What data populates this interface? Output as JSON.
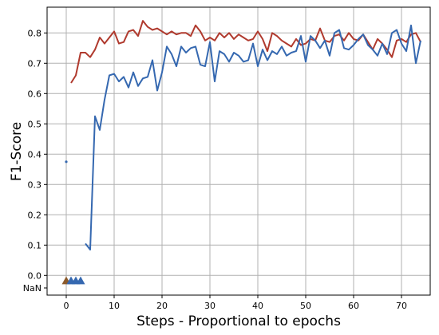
{
  "chart_data": {
    "type": "line",
    "title": "",
    "xlabel": "Steps - Proportional to epochs",
    "ylabel": "F1-Score",
    "xlim": [
      -4,
      76
    ],
    "ylim": [
      -0.065,
      0.885
    ],
    "xticks": [
      0,
      10,
      20,
      30,
      40,
      50,
      60,
      70
    ],
    "yticks": [
      0.0,
      0.1,
      0.2,
      0.3,
      0.4,
      0.5,
      0.6,
      0.7,
      0.8
    ],
    "extra_ytick_label": "NaN",
    "grid": true,
    "series": [
      {
        "color": "#b03a2e",
        "x": [
          1,
          2,
          3,
          4,
          5,
          6,
          7,
          8,
          9,
          10,
          11,
          12,
          13,
          14,
          15,
          16,
          17,
          18,
          19,
          20,
          21,
          22,
          23,
          24,
          25,
          26,
          27,
          28,
          29,
          30,
          31,
          32,
          33,
          34,
          35,
          36,
          37,
          38,
          39,
          40,
          41,
          42,
          43,
          44,
          45,
          46,
          47,
          48,
          49,
          50,
          51,
          52,
          53,
          54,
          55,
          56,
          57,
          58,
          59,
          60,
          61,
          62,
          63,
          64,
          65,
          66,
          67,
          68,
          69,
          70,
          71,
          72,
          73,
          74
        ],
        "values": [
          0.635,
          0.66,
          0.735,
          0.735,
          0.72,
          0.745,
          0.785,
          0.765,
          0.785,
          0.805,
          0.765,
          0.77,
          0.805,
          0.81,
          0.79,
          0.84,
          0.82,
          0.81,
          0.815,
          0.805,
          0.795,
          0.805,
          0.795,
          0.8,
          0.8,
          0.79,
          0.825,
          0.805,
          0.775,
          0.785,
          0.775,
          0.8,
          0.785,
          0.8,
          0.78,
          0.795,
          0.785,
          0.775,
          0.78,
          0.805,
          0.78,
          0.74,
          0.8,
          0.79,
          0.775,
          0.765,
          0.755,
          0.78,
          0.76,
          0.765,
          0.78,
          0.775,
          0.815,
          0.775,
          0.77,
          0.79,
          0.795,
          0.775,
          0.8,
          0.78,
          0.775,
          0.795,
          0.77,
          0.745,
          0.78,
          0.765,
          0.745,
          0.72,
          0.775,
          0.78,
          0.77,
          0.795,
          0.8,
          0.77
        ]
      },
      {
        "color": "#3568b0",
        "x": [
          4,
          5,
          6,
          7,
          8,
          9,
          10,
          11,
          12,
          13,
          14,
          15,
          16,
          17,
          18,
          19,
          20,
          21,
          22,
          23,
          24,
          25,
          26,
          27,
          28,
          29,
          30,
          31,
          32,
          33,
          34,
          35,
          36,
          37,
          38,
          39,
          40,
          41,
          42,
          43,
          44,
          45,
          46,
          47,
          48,
          49,
          50,
          51,
          52,
          53,
          54,
          55,
          56,
          57,
          58,
          59,
          60,
          61,
          62,
          63,
          64,
          65,
          66,
          67,
          68,
          69,
          70,
          71,
          72,
          73,
          74
        ],
        "values": [
          0.105,
          0.085,
          0.525,
          0.48,
          0.58,
          0.66,
          0.665,
          0.64,
          0.655,
          0.62,
          0.67,
          0.625,
          0.65,
          0.655,
          0.71,
          0.61,
          0.67,
          0.755,
          0.73,
          0.69,
          0.755,
          0.735,
          0.75,
          0.755,
          0.695,
          0.69,
          0.77,
          0.64,
          0.74,
          0.73,
          0.705,
          0.735,
          0.725,
          0.705,
          0.71,
          0.765,
          0.69,
          0.745,
          0.71,
          0.74,
          0.73,
          0.755,
          0.725,
          0.735,
          0.74,
          0.79,
          0.705,
          0.79,
          0.775,
          0.75,
          0.775,
          0.725,
          0.8,
          0.81,
          0.75,
          0.745,
          0.76,
          0.78,
          0.795,
          0.76,
          0.745,
          0.725,
          0.765,
          0.73,
          0.8,
          0.81,
          0.765,
          0.74,
          0.825,
          0.7,
          0.775
        ]
      }
    ],
    "markers": [
      {
        "shape": "dot",
        "color": "#3568b0",
        "x": 0,
        "y": 0.375
      },
      {
        "shape": "triangle",
        "color": "#8b5a2b",
        "x": 0,
        "y": "NaN"
      },
      {
        "shape": "triangle",
        "color": "#3568b0",
        "x": 1,
        "y": "NaN"
      },
      {
        "shape": "triangle",
        "color": "#3568b0",
        "x": 2,
        "y": "NaN"
      },
      {
        "shape": "triangle",
        "color": "#3568b0",
        "x": 3,
        "y": "NaN"
      }
    ]
  }
}
